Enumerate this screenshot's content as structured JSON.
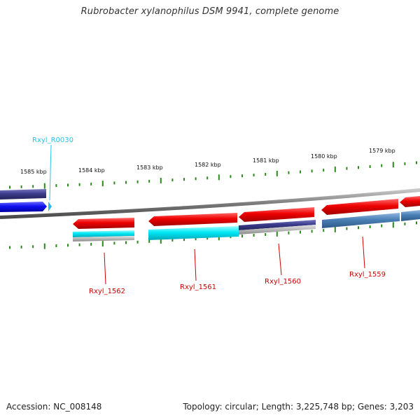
{
  "title": "Rubrobacter xylanophilus DSM 9941, complete genome",
  "footer": {
    "accession": "Accession: NC_008148",
    "summary": "Topology: circular; Length: 3,225,748 bp; Genes: 3,203"
  },
  "scale_labels": [
    "1585 kbp",
    "1584 kbp",
    "1583 kbp",
    "1582 kbp",
    "1581 kbp",
    "1580 kbp",
    "1579 kbp"
  ],
  "gene_labels": [
    "Rxyl_R0030",
    "Rxyl_1562",
    "Rxyl_1561",
    "Rxyl_1560",
    "Rxyl_1559"
  ],
  "colors": {
    "cds": "#e8000b",
    "rrna": "#00e5f0",
    "blue_feature": "#1010f0",
    "navy_feature": "#3b3b8c",
    "steel_feature": "#4a7fb5",
    "grey_feature": "#b8b8b8",
    "backbone": "#808080",
    "tick": "#2a8a1a",
    "label_red": "#cc0000",
    "label_cyan": "#29c4e8"
  }
}
